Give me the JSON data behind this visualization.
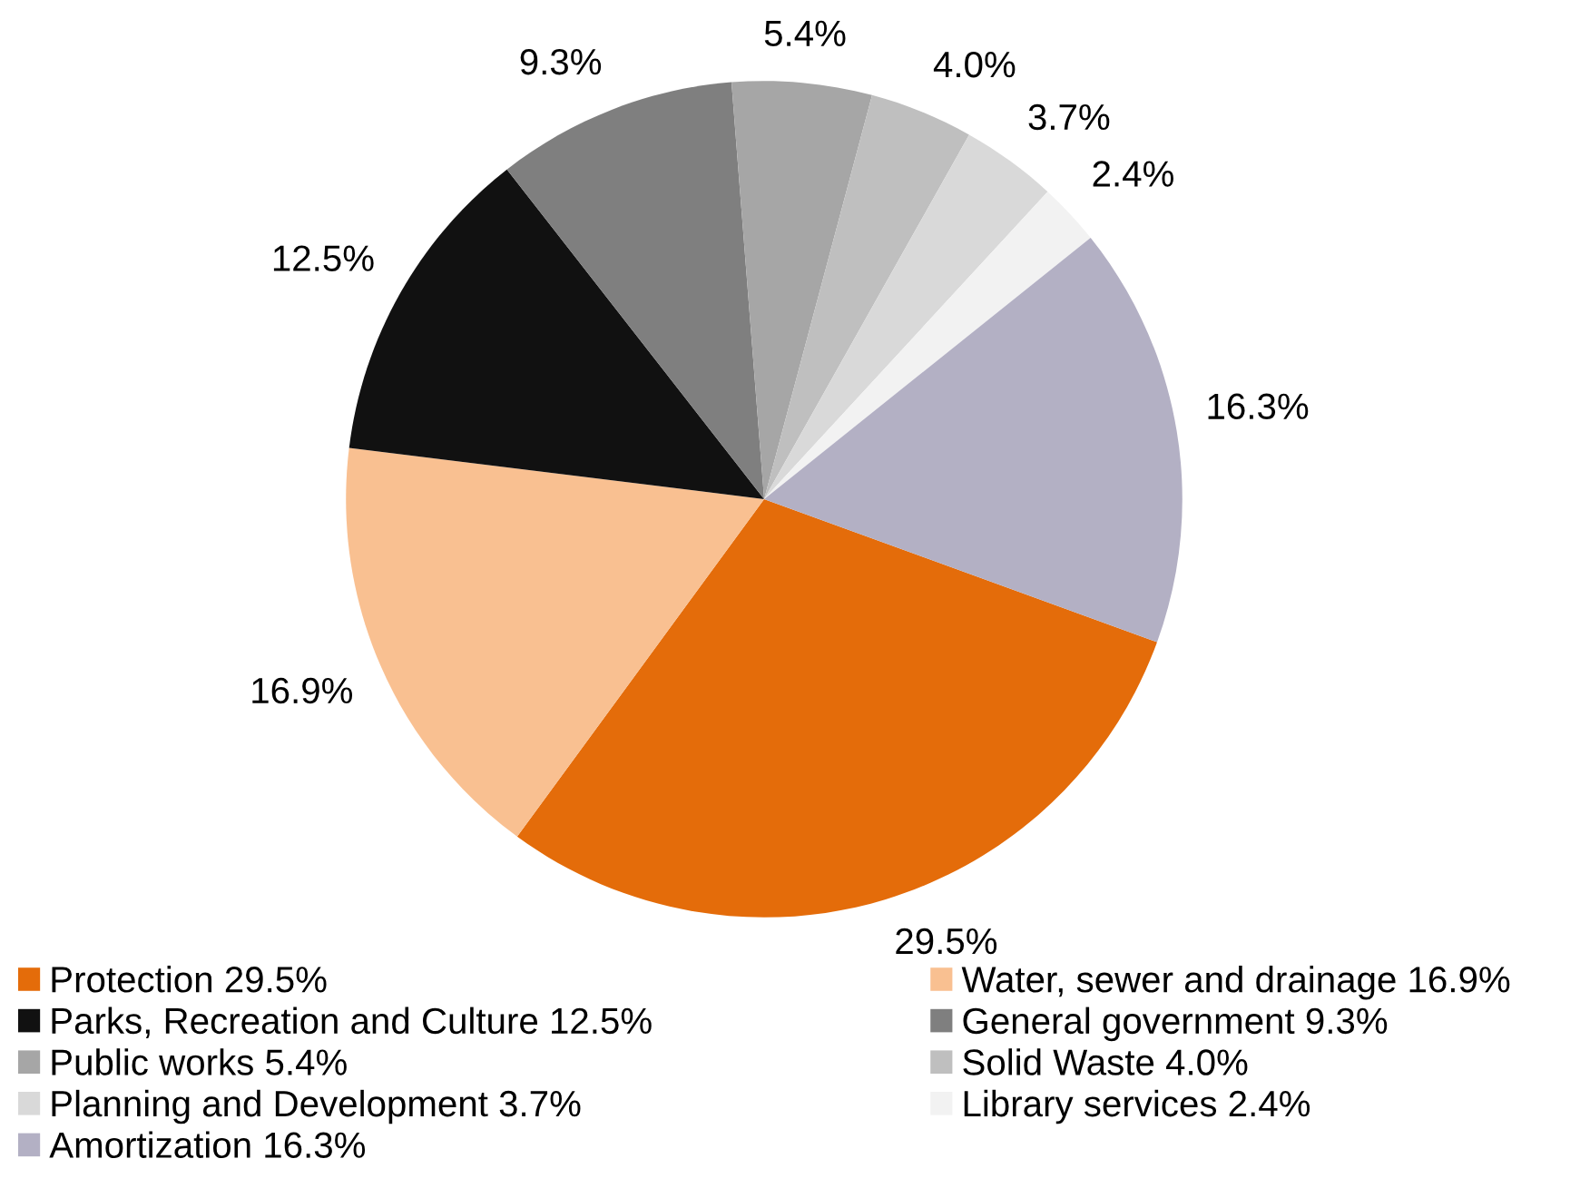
{
  "chart_data": {
    "type": "pie",
    "categories": [
      "Protection",
      "Water, sewer and drainage",
      "Parks, Recreation and Culture",
      "General government",
      "Public works",
      "Solid Waste",
      "Planning and Development",
      "Library services",
      "Amortization"
    ],
    "values": [
      29.5,
      16.9,
      12.5,
      9.3,
      5.4,
      4.0,
      3.7,
      2.4,
      16.3
    ],
    "value_labels": [
      "29.5%",
      "16.9%",
      "12.5%",
      "9.3%",
      "5.4%",
      "4.0%",
      "3.7%",
      "2.4%",
      "16.3%"
    ],
    "colors": [
      "#e46c0a",
      "#f9c091",
      "#111111",
      "#7f7f7f",
      "#a6a6a6",
      "#bfbfbf",
      "#d9d9d9",
      "#f2f2f2",
      "#b3b0c4"
    ],
    "legend": "bottom"
  }
}
